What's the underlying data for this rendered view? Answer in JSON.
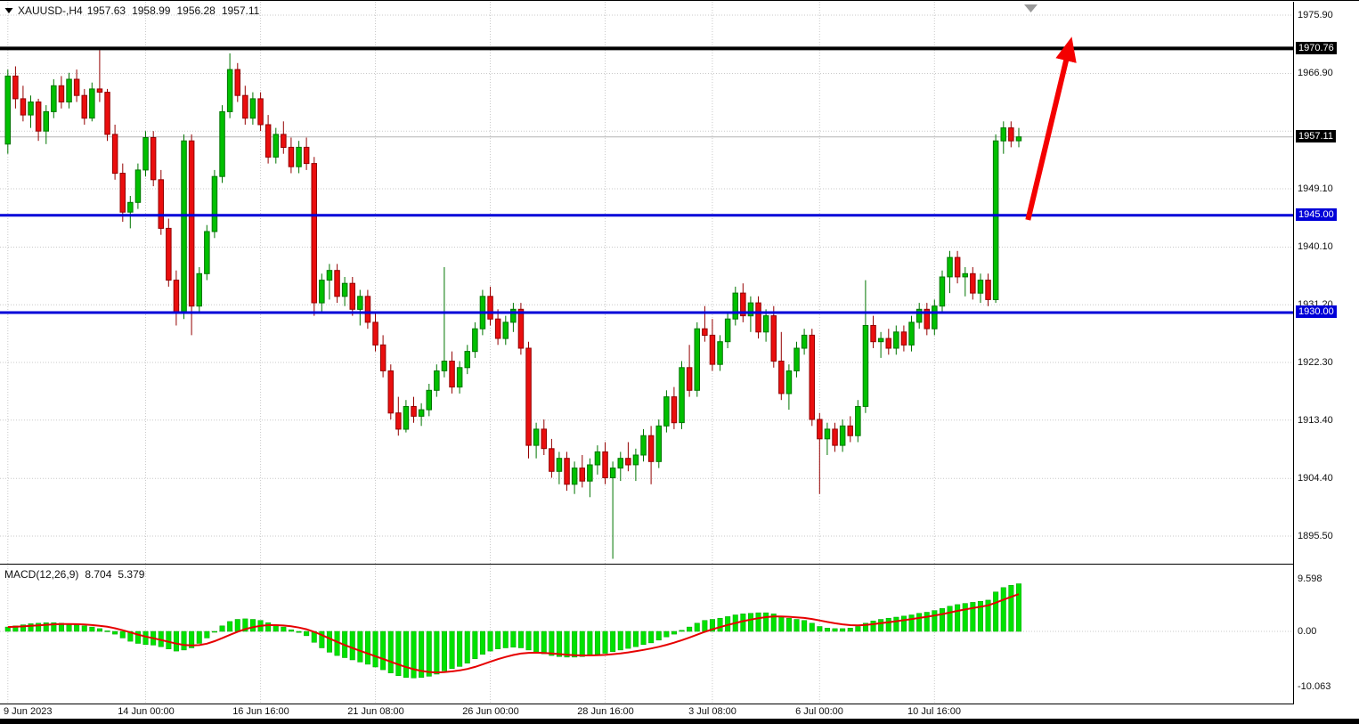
{
  "header": {
    "symbol_timeframe": "XAUUSD-,H4",
    "open": "1957.63",
    "high": "1958.99",
    "low": "1956.28",
    "close": "1957.11"
  },
  "macd_panel": {
    "name": "MACD(12,26,9)",
    "value_main": "8.704",
    "value_signal": "5.379",
    "axis_ticks": [
      {
        "label": "9.598",
        "value": 9.598
      },
      {
        "label": "0.00",
        "value": 0
      },
      {
        "label": "-10.063",
        "value": -10.063
      }
    ]
  },
  "price_axis": {
    "ticks": [
      {
        "label": "1975.90",
        "price": 1975.9,
        "style": "plain"
      },
      {
        "label": "1970.76",
        "price": 1970.76,
        "style": "black"
      },
      {
        "label": "1966.90",
        "price": 1966.9,
        "style": "plain"
      },
      {
        "label": "1957.11",
        "price": 1957.11,
        "style": "black"
      },
      {
        "label": "1949.10",
        "price": 1949.1,
        "style": "plain"
      },
      {
        "label": "1945.00",
        "price": 1945.0,
        "style": "blue"
      },
      {
        "label": "1940.10",
        "price": 1940.1,
        "style": "plain"
      },
      {
        "label": "1931.20",
        "price": 1931.2,
        "style": "plain"
      },
      {
        "label": "1930.00",
        "price": 1930.0,
        "style": "blue"
      },
      {
        "label": "1922.30",
        "price": 1922.3,
        "style": "plain"
      },
      {
        "label": "1913.40",
        "price": 1913.4,
        "style": "plain"
      },
      {
        "label": "1904.40",
        "price": 1904.4,
        "style": "plain"
      },
      {
        "label": "1895.50",
        "price": 1895.5,
        "style": "plain"
      }
    ]
  },
  "time_axis": {
    "labels": [
      {
        "label": "9 Jun 2023",
        "index": 0
      },
      {
        "label": "14 Jun 00:00",
        "index": 18
      },
      {
        "label": "16 Jun 16:00",
        "index": 33
      },
      {
        "label": "21 Jun 08:00",
        "index": 48
      },
      {
        "label": "26 Jun 00:00",
        "index": 63
      },
      {
        "label": "28 Jun 16:00",
        "index": 78
      },
      {
        "label": "3 Jul 08:00",
        "index": 92
      },
      {
        "label": "6 Jul 00:00",
        "index": 106
      },
      {
        "label": "10 Jul 16:00",
        "index": 121
      }
    ]
  },
  "colors": {
    "bull": "#00c000",
    "bull_border": "#007500",
    "bear": "#ea0e0e",
    "bear_border": "#940000",
    "histogram": "#00e200",
    "histogram_border": "#00a000",
    "signal_line": "#e60000",
    "grid": "#c9c9c9",
    "current_price_line": "#b4b4b4",
    "level_black": "#000000",
    "level_blue": "#0000d8",
    "arrow": "#f40000",
    "shift_marker": "#9a9a9a"
  },
  "chart_data": {
    "type": "candlestick",
    "symbol": "XAUUSD",
    "timeframe": "H4",
    "title": "XAUUSD-,H4 1957.63 1958.99 1956.28 1957.11",
    "y_visible_range": [
      1891.1,
      1977.9
    ],
    "y_grid": [
      1975.9,
      1966.9,
      1958.0,
      1949.1,
      1940.1,
      1931.2,
      1922.3,
      1913.4,
      1904.4,
      1895.5
    ],
    "horizontal_lines": [
      {
        "price": 1957.11,
        "color": "#b4b4b4",
        "width": 1,
        "role": "current-price",
        "label": "1957.11"
      },
      {
        "price": 1970.76,
        "color": "#000000",
        "width": 4,
        "role": "resistance",
        "label": "1970.76"
      },
      {
        "price": 1945.0,
        "color": "#0000d8",
        "width": 3,
        "role": "support",
        "label": "1945.00"
      },
      {
        "price": 1930.0,
        "color": "#0000d8",
        "width": 3,
        "role": "support",
        "label": "1930.00"
      }
    ],
    "annotation_arrow": {
      "from": {
        "index": 133.2,
        "price": 1944.3
      },
      "to": {
        "index": 138.4,
        "price": 1970.0
      },
      "color": "#f40000"
    },
    "ohlc": [
      [
        1956.0,
        1967.5,
        1954.5,
        1966.5
      ],
      [
        1966.5,
        1968.0,
        1961.5,
        1963.0
      ],
      [
        1963.0,
        1965.0,
        1959.5,
        1960.5
      ],
      [
        1960.5,
        1963.5,
        1958.5,
        1962.5
      ],
      [
        1962.5,
        1963.0,
        1956.5,
        1958.0
      ],
      [
        1958.0,
        1962.0,
        1956.0,
        1961.0
      ],
      [
        1961.0,
        1966.0,
        1960.0,
        1965.0
      ],
      [
        1965.0,
        1966.5,
        1961.5,
        1962.5
      ],
      [
        1962.5,
        1967.0,
        1961.5,
        1966.0
      ],
      [
        1966.0,
        1967.5,
        1962.5,
        1963.5
      ],
      [
        1963.5,
        1964.5,
        1959.0,
        1960.0
      ],
      [
        1960.0,
        1965.5,
        1959.5,
        1964.5
      ],
      [
        1964.5,
        1970.5,
        1962.5,
        1964.0
      ],
      [
        1964.0,
        1964.5,
        1956.5,
        1957.5
      ],
      [
        1957.5,
        1959.0,
        1950.5,
        1951.5
      ],
      [
        1951.5,
        1953.0,
        1944.0,
        1945.5
      ],
      [
        1945.5,
        1948.0,
        1943.0,
        1947.0
      ],
      [
        1947.0,
        1953.0,
        1946.0,
        1952.0
      ],
      [
        1952.0,
        1958.0,
        1951.0,
        1957.0
      ],
      [
        1957.0,
        1958.0,
        1949.5,
        1950.5
      ],
      [
        1950.5,
        1952.0,
        1942.0,
        1943.0
      ],
      [
        1943.0,
        1944.5,
        1934.0,
        1935.0
      ],
      [
        1935.0,
        1936.5,
        1928.0,
        1930.0
      ],
      [
        1930.0,
        1957.5,
        1929.0,
        1956.5
      ],
      [
        1956.5,
        1957.5,
        1926.5,
        1931.0
      ],
      [
        1931.0,
        1937.0,
        1930.0,
        1936.0
      ],
      [
        1936.0,
        1943.5,
        1935.0,
        1942.5
      ],
      [
        1942.5,
        1952.0,
        1941.5,
        1951.0
      ],
      [
        1951.0,
        1962.0,
        1950.0,
        1961.0
      ],
      [
        1961.0,
        1970.0,
        1960.0,
        1967.5
      ],
      [
        1967.5,
        1968.5,
        1962.5,
        1963.5
      ],
      [
        1963.5,
        1965.0,
        1959.0,
        1960.0
      ],
      [
        1960.0,
        1964.0,
        1959.0,
        1963.0
      ],
      [
        1963.0,
        1964.0,
        1958.0,
        1959.0
      ],
      [
        1959.0,
        1960.5,
        1953.0,
        1954.0
      ],
      [
        1954.0,
        1958.5,
        1953.0,
        1957.5
      ],
      [
        1957.5,
        1959.5,
        1954.5,
        1955.5
      ],
      [
        1955.5,
        1957.0,
        1951.5,
        1952.5
      ],
      [
        1952.5,
        1956.5,
        1951.5,
        1955.5
      ],
      [
        1955.5,
        1957.0,
        1952.0,
        1953.0
      ],
      [
        1953.0,
        1954.0,
        1929.5,
        1931.5
      ],
      [
        1931.5,
        1936.0,
        1930.0,
        1935.0
      ],
      [
        1935.0,
        1937.5,
        1932.0,
        1936.5
      ],
      [
        1936.5,
        1937.5,
        1931.5,
        1932.5
      ],
      [
        1932.5,
        1935.5,
        1931.0,
        1934.5
      ],
      [
        1934.5,
        1935.5,
        1929.5,
        1930.5
      ],
      [
        1930.5,
        1933.5,
        1928.0,
        1932.5
      ],
      [
        1932.5,
        1933.5,
        1927.5,
        1928.5
      ],
      [
        1928.5,
        1930.0,
        1924.0,
        1925.0
      ],
      [
        1925.0,
        1926.5,
        1920.0,
        1921.0
      ],
      [
        1921.0,
        1922.0,
        1913.5,
        1914.5
      ],
      [
        1914.5,
        1917.0,
        1911.0,
        1912.0
      ],
      [
        1912.0,
        1916.5,
        1911.5,
        1915.5
      ],
      [
        1915.5,
        1917.0,
        1913.0,
        1914.0
      ],
      [
        1914.0,
        1916.0,
        1912.5,
        1915.0
      ],
      [
        1915.0,
        1919.0,
        1914.0,
        1918.0
      ],
      [
        1918.0,
        1922.0,
        1917.0,
        1921.0
      ],
      [
        1921.0,
        1937.0,
        1920.0,
        1922.5
      ],
      [
        1922.5,
        1924.0,
        1917.5,
        1918.5
      ],
      [
        1918.5,
        1922.5,
        1917.5,
        1921.5
      ],
      [
        1921.5,
        1925.0,
        1920.5,
        1924.0
      ],
      [
        1924.0,
        1928.5,
        1923.0,
        1927.5
      ],
      [
        1927.5,
        1933.5,
        1926.5,
        1932.5
      ],
      [
        1932.5,
        1934.0,
        1928.0,
        1929.0
      ],
      [
        1929.0,
        1930.5,
        1925.0,
        1926.0
      ],
      [
        1926.0,
        1929.5,
        1925.0,
        1928.5
      ],
      [
        1928.5,
        1931.5,
        1927.0,
        1930.5
      ],
      [
        1930.5,
        1931.5,
        1923.5,
        1924.5
      ],
      [
        1924.5,
        1925.5,
        1907.5,
        1909.5
      ],
      [
        1909.5,
        1913.0,
        1907.5,
        1912.0
      ],
      [
        1912.0,
        1913.5,
        1908.0,
        1909.0
      ],
      [
        1909.0,
        1910.5,
        1904.5,
        1905.5
      ],
      [
        1905.5,
        1908.5,
        1903.5,
        1907.5
      ],
      [
        1907.5,
        1908.5,
        1902.5,
        1903.5
      ],
      [
        1903.5,
        1907.0,
        1902.0,
        1906.0
      ],
      [
        1906.0,
        1908.0,
        1903.0,
        1904.0
      ],
      [
        1904.0,
        1907.5,
        1901.5,
        1906.5
      ],
      [
        1906.5,
        1909.5,
        1905.0,
        1908.5
      ],
      [
        1908.5,
        1910.0,
        1903.5,
        1904.5
      ],
      [
        1904.5,
        1907.0,
        1892.0,
        1906.0
      ],
      [
        1906.0,
        1908.5,
        1904.0,
        1907.5
      ],
      [
        1907.5,
        1910.0,
        1905.5,
        1906.5
      ],
      [
        1906.5,
        1909.0,
        1904.0,
        1908.0
      ],
      [
        1908.0,
        1912.0,
        1907.0,
        1911.0
      ],
      [
        1911.0,
        1912.5,
        1903.5,
        1907.0
      ],
      [
        1907.0,
        1913.5,
        1906.0,
        1912.5
      ],
      [
        1912.5,
        1918.0,
        1911.5,
        1917.0
      ],
      [
        1917.0,
        1918.5,
        1912.0,
        1913.0
      ],
      [
        1913.0,
        1922.5,
        1912.0,
        1921.5
      ],
      [
        1921.5,
        1925.0,
        1917.0,
        1918.0
      ],
      [
        1918.0,
        1928.5,
        1917.0,
        1927.5
      ],
      [
        1927.5,
        1931.0,
        1925.5,
        1926.5
      ],
      [
        1926.5,
        1929.0,
        1921.0,
        1922.0
      ],
      [
        1922.0,
        1926.5,
        1921.0,
        1925.5
      ],
      [
        1925.5,
        1930.0,
        1924.5,
        1929.0
      ],
      [
        1929.0,
        1934.0,
        1928.0,
        1933.0
      ],
      [
        1933.0,
        1934.5,
        1928.5,
        1929.5
      ],
      [
        1929.5,
        1932.5,
        1927.0,
        1931.5
      ],
      [
        1931.5,
        1932.5,
        1926.0,
        1927.0
      ],
      [
        1927.0,
        1930.5,
        1925.5,
        1929.5
      ],
      [
        1929.5,
        1931.0,
        1921.5,
        1922.5
      ],
      [
        1922.5,
        1927.0,
        1916.5,
        1917.5
      ],
      [
        1917.5,
        1922.0,
        1915.0,
        1921.0
      ],
      [
        1921.0,
        1925.5,
        1920.0,
        1924.5
      ],
      [
        1924.5,
        1927.5,
        1923.5,
        1926.5
      ],
      [
        1926.5,
        1927.5,
        1912.5,
        1913.5
      ],
      [
        1913.5,
        1914.5,
        1902.0,
        1910.5
      ],
      [
        1910.5,
        1913.0,
        1908.0,
        1912.0
      ],
      [
        1912.0,
        1913.0,
        1908.5,
        1909.5
      ],
      [
        1909.5,
        1913.5,
        1908.5,
        1912.5
      ],
      [
        1912.5,
        1914.0,
        1910.0,
        1911.0
      ],
      [
        1911.0,
        1916.5,
        1910.0,
        1915.5
      ],
      [
        1915.5,
        1935.0,
        1914.5,
        1928.0
      ],
      [
        1928.0,
        1929.5,
        1924.5,
        1925.5
      ],
      [
        1925.5,
        1927.0,
        1923.0,
        1926.0
      ],
      [
        1926.0,
        1927.5,
        1923.5,
        1924.5
      ],
      [
        1924.5,
        1928.0,
        1923.5,
        1927.0
      ],
      [
        1927.0,
        1928.0,
        1924.0,
        1925.0
      ],
      [
        1925.0,
        1929.5,
        1924.0,
        1928.5
      ],
      [
        1928.5,
        1931.5,
        1927.5,
        1930.5
      ],
      [
        1930.5,
        1931.5,
        1926.5,
        1927.5
      ],
      [
        1927.5,
        1932.0,
        1926.5,
        1931.0
      ],
      [
        1931.0,
        1936.5,
        1930.0,
        1935.5
      ],
      [
        1935.5,
        1939.5,
        1933.0,
        1938.5
      ],
      [
        1938.5,
        1939.5,
        1934.5,
        1935.5
      ],
      [
        1935.5,
        1937.0,
        1932.5,
        1936.0
      ],
      [
        1936.0,
        1937.0,
        1932.0,
        1933.0
      ],
      [
        1933.0,
        1936.0,
        1931.5,
        1935.0
      ],
      [
        1935.0,
        1936.0,
        1931.0,
        1932.0
      ],
      [
        1932.0,
        1957.5,
        1931.5,
        1956.5
      ],
      [
        1956.5,
        1959.5,
        1954.5,
        1958.5
      ],
      [
        1958.5,
        1959.5,
        1955.5,
        1956.5
      ],
      [
        1956.5,
        1958.5,
        1955.5,
        1957.11
      ]
    ],
    "macd": {
      "type": "bar",
      "name": "MACD(12,26,9)",
      "last_main": 8.704,
      "last_signal": 5.379,
      "axis_ticks": [
        9.598,
        0,
        -10.063
      ],
      "histogram": [
        0.8,
        1.0,
        1.2,
        1.4,
        1.5,
        1.6,
        1.6,
        1.5,
        1.4,
        1.2,
        1.0,
        0.8,
        0.5,
        0.1,
        -0.5,
        -1.2,
        -1.8,
        -2.2,
        -2.4,
        -2.5,
        -2.8,
        -3.2,
        -3.6,
        -3.4,
        -3.0,
        -2.2,
        -1.2,
        0.0,
        1.0,
        1.8,
        2.2,
        2.3,
        2.2,
        2.0,
        1.6,
        1.2,
        0.8,
        0.3,
        -0.2,
        -0.8,
        -2.0,
        -3.0,
        -3.8,
        -4.4,
        -4.8,
        -5.2,
        -5.6,
        -6.0,
        -6.5,
        -7.0,
        -7.6,
        -8.1,
        -8.4,
        -8.5,
        -8.4,
        -8.2,
        -7.8,
        -7.2,
        -6.8,
        -6.4,
        -5.8,
        -5.0,
        -4.2,
        -3.6,
        -3.2,
        -3.0,
        -2.9,
        -3.0,
        -3.4,
        -3.8,
        -4.1,
        -4.4,
        -4.6,
        -4.7,
        -4.7,
        -4.6,
        -4.4,
        -4.2,
        -4.0,
        -3.7,
        -3.4,
        -3.1,
        -2.8,
        -2.4,
        -2.1,
        -1.6,
        -1.0,
        -0.5,
        0.2,
        0.8,
        1.5,
        2.0,
        2.2,
        2.4,
        2.7,
        3.0,
        3.2,
        3.3,
        3.4,
        3.4,
        3.2,
        2.8,
        2.4,
        2.2,
        2.0,
        1.5,
        0.9,
        0.6,
        0.5,
        0.5,
        0.6,
        0.9,
        1.5,
        1.9,
        2.2,
        2.4,
        2.6,
        2.8,
        3.0,
        3.3,
        3.5,
        3.8,
        4.2,
        4.6,
        4.9,
        5.1,
        5.3,
        5.5,
        5.7,
        7.2,
        8.0,
        8.4,
        8.704
      ]
    }
  }
}
